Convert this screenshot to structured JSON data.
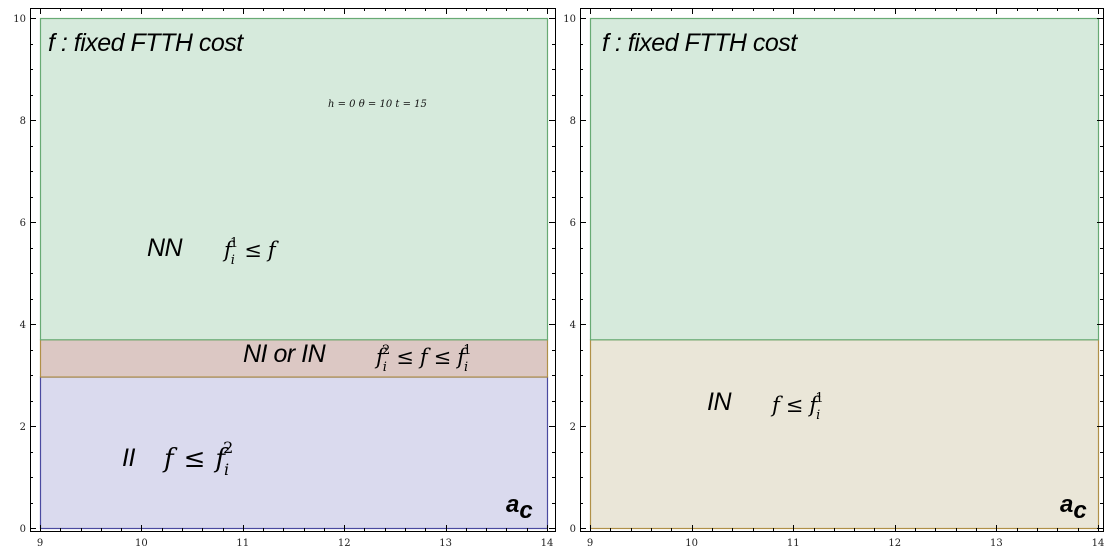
{
  "chart_data": [
    {
      "type": "area",
      "title": "f : fixed FTTH cost",
      "xlabel": "a",
      "xlabel_sub": "c",
      "xlim": [
        9,
        14
      ],
      "ylim": [
        0,
        10
      ],
      "x_ticks": [
        9,
        10,
        11,
        12,
        13,
        14
      ],
      "y_ticks": [
        0,
        2,
        4,
        6,
        8,
        10
      ],
      "params": "h = 0  θ = 10 t = 15",
      "regions": [
        {
          "name": "II",
          "y0": 0,
          "y1": 2.97,
          "fill": "#dadaee",
          "stroke": "#4a4aa0",
          "condition": "f ≤ f_i^2"
        },
        {
          "name": "NI or IN",
          "y0": 2.97,
          "y1": 3.7,
          "fill": "#dcc8c4",
          "stroke": "#b09048",
          "condition": "f_i^2 ≤ f ≤ f_i^1"
        },
        {
          "name": "NN",
          "y0": 3.7,
          "y1": 10,
          "fill": "#d6eadc",
          "stroke": "#68aa74",
          "condition": "f_i^1 ≤ f"
        }
      ]
    },
    {
      "type": "area",
      "title": "f : fixed FTTH cost",
      "xlabel": "a",
      "xlabel_sub": "c",
      "xlim": [
        9,
        14
      ],
      "ylim": [
        0,
        10
      ],
      "x_ticks": [
        9,
        10,
        11,
        12,
        13,
        14
      ],
      "y_ticks": [
        0,
        2,
        4,
        6,
        8,
        10
      ],
      "regions": [
        {
          "name": "IN",
          "y0": 0,
          "y1": 3.7,
          "fill": "#eae6d8",
          "stroke": "#b09048",
          "condition": "f ≤ f_i^1"
        },
        {
          "name": "",
          "y0": 3.7,
          "y1": 10,
          "fill": "#d6eadc",
          "stroke": "#68aa74",
          "condition": ""
        }
      ]
    }
  ]
}
